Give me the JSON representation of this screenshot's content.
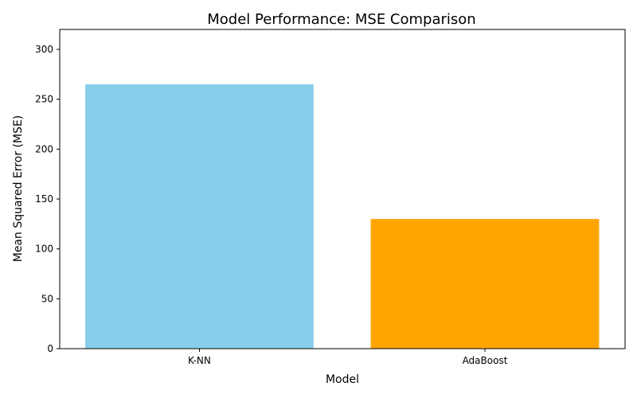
{
  "chart_data": {
    "type": "bar",
    "title": "Model Performance: MSE Comparison",
    "xlabel": "Model",
    "ylabel": "Mean Squared Error (MSE)",
    "categories": [
      "K-NN",
      "AdaBoost"
    ],
    "values": [
      265,
      130
    ],
    "colors": [
      "#87ceeb",
      "#ffa500"
    ],
    "ylim": [
      0,
      320
    ],
    "yticks": [
      0,
      50,
      100,
      150,
      200,
      250,
      300
    ],
    "grid": false,
    "legend": "none"
  }
}
